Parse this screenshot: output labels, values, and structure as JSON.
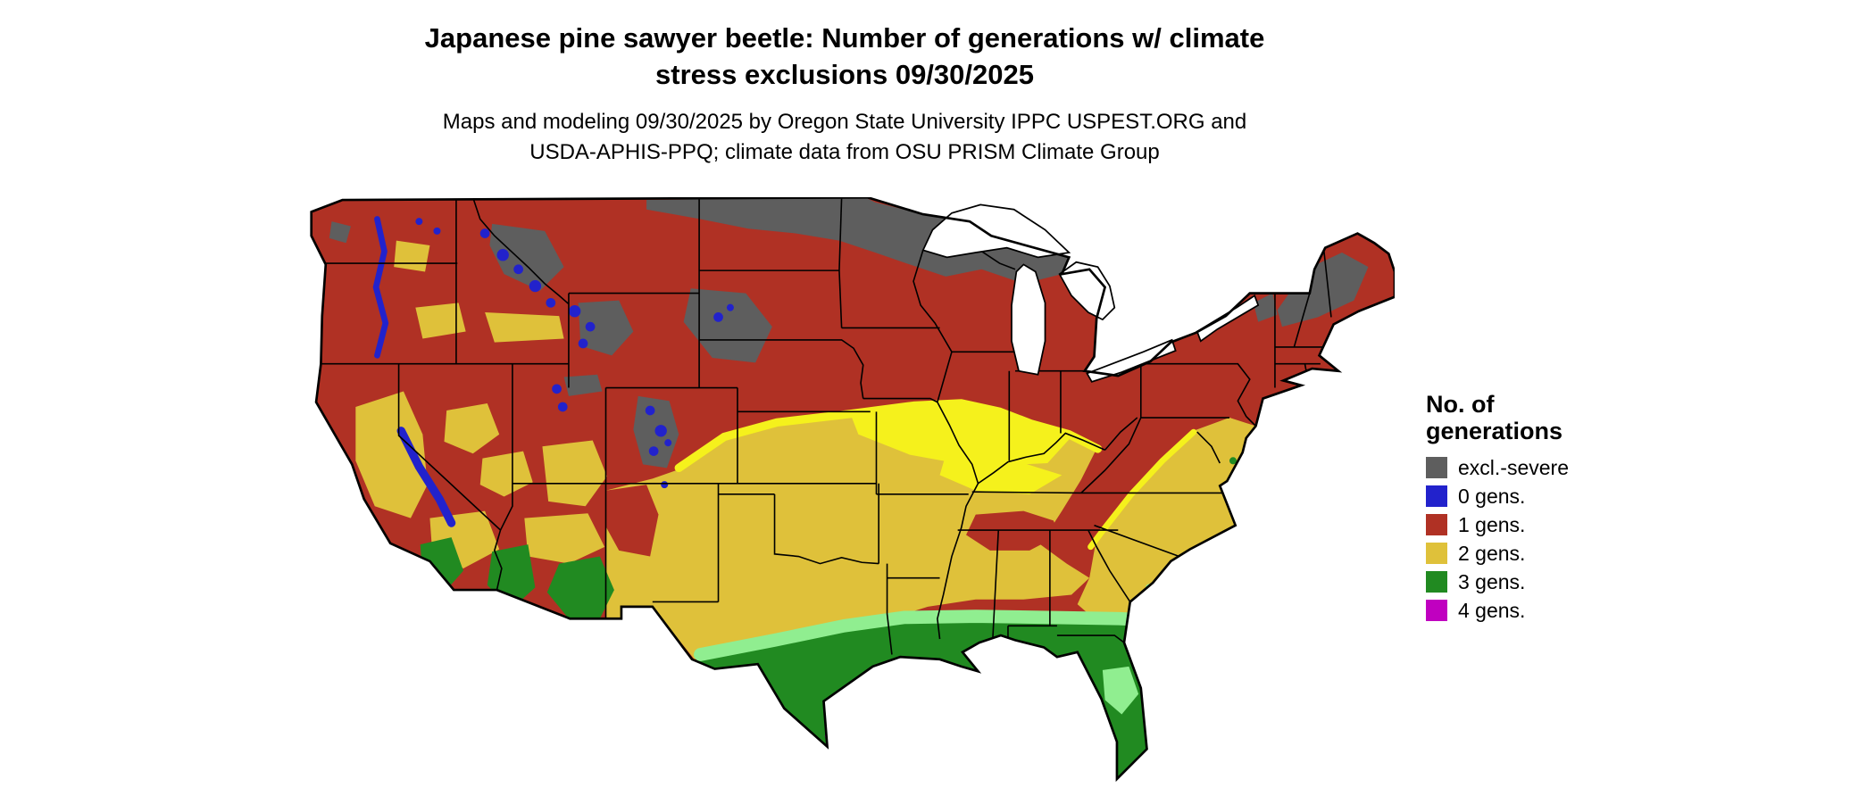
{
  "title": {
    "line1": "Japanese pine sawyer beetle: Number of generations w/ climate",
    "line2": "stress exclusions 09/30/2025"
  },
  "subtitle": {
    "line1": "Maps and modeling 09/30/2025 by Oregon State University IPPC USPEST.ORG and",
    "line2": "USDA-APHIS-PPQ; climate data from OSU PRISM Climate Group"
  },
  "legend": {
    "title_line1": "No. of",
    "title_line2": "generations",
    "items": [
      {
        "label": "excl.-severe",
        "color_key": "excl_severe"
      },
      {
        "label": "0 gens.",
        "color_key": "gens0"
      },
      {
        "label": "1 gens.",
        "color_key": "gens1"
      },
      {
        "label": "2 gens.",
        "color_key": "gens2"
      },
      {
        "label": "3 gens.",
        "color_key": "gens3"
      },
      {
        "label": "4 gens.",
        "color_key": "gens4"
      }
    ]
  },
  "colors": {
    "excl_severe": "#5E5E5E",
    "gens0": "#2222CC",
    "gens1": "#B03124",
    "gens2": "#DFC13A",
    "gens2_bright": "#F5F11C",
    "gens3": "#218A21",
    "gens3_light": "#90EE90",
    "gens4": "#C000C0",
    "water": "#FFFFFF",
    "border": "#000000"
  }
}
